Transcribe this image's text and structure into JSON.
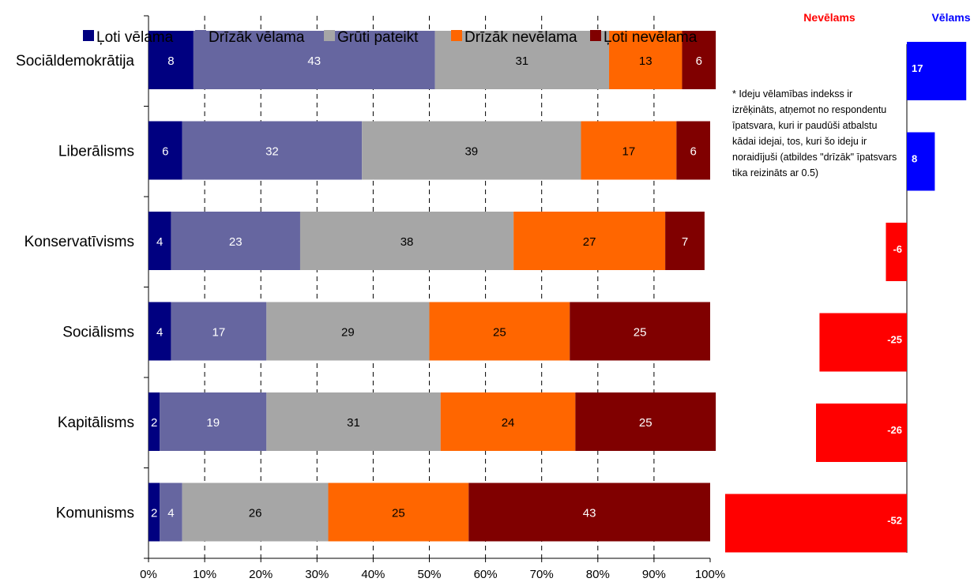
{
  "chart_data": [
    {
      "type": "bar",
      "orientation": "horizontal-stacked-100",
      "categories": [
        "Sociāldemokrātija",
        "Liberālisms",
        "Konservatīvisms",
        "Sociālisms",
        "Kapitālisms",
        "Komunisms"
      ],
      "series": [
        {
          "name": "Ļoti vēlama",
          "color": "#000080",
          "values": [
            8,
            6,
            4,
            4,
            2,
            2
          ]
        },
        {
          "name": "Drīzāk vēlama",
          "color": "#6666a0",
          "values": [
            43,
            32,
            23,
            17,
            19,
            4
          ]
        },
        {
          "name": "Grūti pateikt",
          "color": "#a6a6a6",
          "values": [
            31,
            39,
            38,
            29,
            31,
            26
          ]
        },
        {
          "name": "Drīzāk nevēlama",
          "color": "#ff6600",
          "values": [
            13,
            17,
            27,
            25,
            24,
            25
          ]
        },
        {
          "name": "Ļoti nevēlama",
          "color": "#800000",
          "values": [
            6,
            6,
            7,
            25,
            25,
            43
          ]
        }
      ],
      "x_ticks": [
        "0%",
        "10%",
        "20%",
        "30%",
        "40%",
        "50%",
        "60%",
        "70%",
        "80%",
        "90%",
        "100%"
      ],
      "xlim": [
        0,
        100
      ],
      "legend_position": "top",
      "grid": "vertical dashed"
    },
    {
      "type": "bar",
      "orientation": "horizontal-diverging",
      "categories": [
        "Sociāldemokrātija",
        "Liberālisms",
        "Konservatīvisms",
        "Sociālisms",
        "Kapitālisms",
        "Komunisms"
      ],
      "values": [
        17,
        8,
        -6,
        -25,
        -26,
        -52
      ],
      "negative_header": "Nevēlams",
      "positive_header": "Vēlams",
      "negative_color": "#ff0000",
      "positive_color": "#0000ff"
    }
  ],
  "note": "* Ideju vēlamības indekss ir izrēķināts, atņemot no respondentu īpatsvara, kuri ir paudūši atbalstu kādai idejai, tos, kuri šo ideju ir noraidījuši (atbildes \"drīzāk\" īpatsvars tika reizināts ar 0.5)"
}
